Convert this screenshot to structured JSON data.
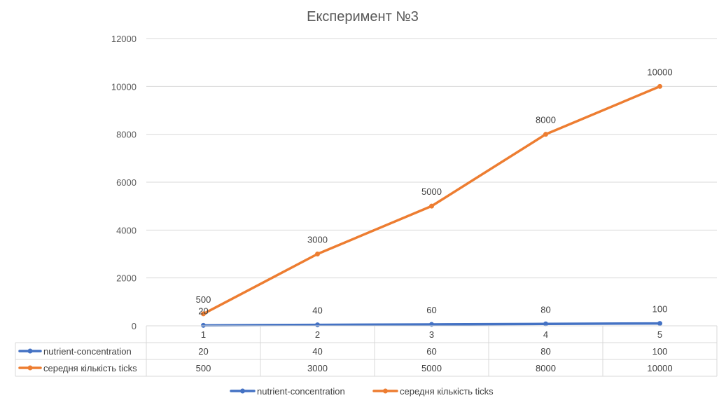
{
  "chart_data": {
    "type": "line",
    "title": "Експеримент №3",
    "categories": [
      "1",
      "2",
      "3",
      "4",
      "5"
    ],
    "ylim": [
      0,
      12000
    ],
    "yticks": [
      0,
      2000,
      4000,
      6000,
      8000,
      10000,
      12000
    ],
    "grid": true,
    "legend_position": "bottom",
    "series": [
      {
        "name": "nutrient-concentration",
        "values": [
          20,
          40,
          60,
          80,
          100
        ],
        "color": "#4472C4"
      },
      {
        "name": "середня кількість ticks",
        "values": [
          500,
          3000,
          5000,
          8000,
          10000
        ],
        "color": "#ED7D31"
      }
    ],
    "data_table": true
  }
}
